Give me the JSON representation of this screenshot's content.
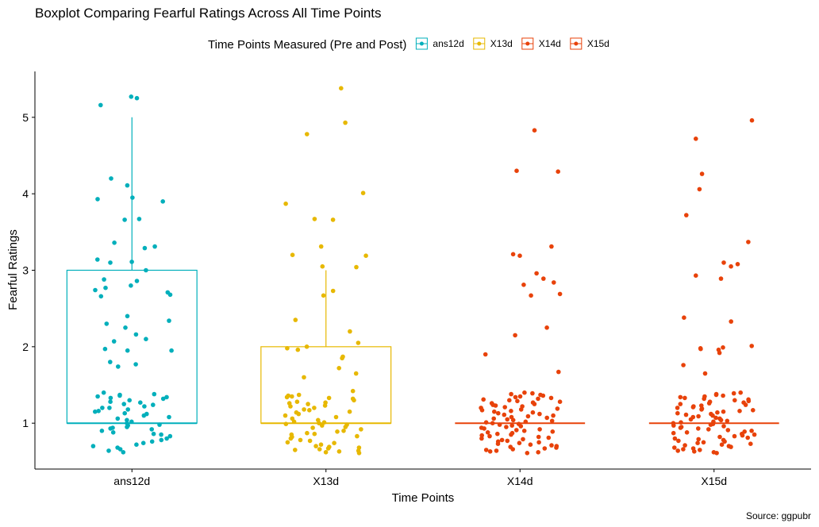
{
  "chart_data": {
    "type": "boxplot",
    "title": "Boxplot Comparing Fearful Ratings Across All Time Points",
    "xlabel": "Time Points",
    "ylabel": "Fearful Ratings",
    "caption": "Source: ggpubr",
    "legend": {
      "title": "Time Points Measured (Pre and Post)",
      "position": "top",
      "entries": [
        "ans12d",
        "X13d",
        "X14d",
        "X15d"
      ]
    },
    "ylim": [
      0.4,
      5.6
    ],
    "yticks": [
      1,
      2,
      3,
      4,
      5
    ],
    "categories": [
      "ans12d",
      "X13d",
      "X14d",
      "X15d"
    ],
    "series": [
      {
        "name": "ans12d",
        "color": "#00AFBB",
        "box": {
          "q1": 1,
          "median": 1,
          "q3": 3,
          "whisker_low": 1,
          "whisker_high": 5
        },
        "points": [
          5.27,
          5.25,
          5.16,
          4.2,
          4.11,
          3.95,
          3.93,
          3.9,
          3.67,
          3.66,
          3.36,
          3.31,
          3.29,
          3.14,
          3.11,
          3.1,
          3.0,
          2.88,
          2.86,
          2.8,
          2.77,
          2.74,
          2.71,
          2.68,
          2.66,
          2.4,
          2.34,
          2.3,
          2.25,
          2.16,
          2.1,
          2.07,
          1.97,
          1.95,
          1.95,
          1.8,
          1.77,
          1.74,
          1.4,
          1.38,
          1.37,
          1.36,
          1.35,
          1.34,
          1.33,
          1.32,
          1.3,
          1.28,
          1.27,
          1.25,
          1.24,
          1.22,
          1.2,
          1.2,
          1.18,
          1.16,
          1.15,
          1.13,
          1.12,
          1.1,
          1.08,
          1.06,
          1.04,
          1.02,
          1.0,
          0.98,
          0.97,
          0.95,
          0.94,
          0.93,
          0.92,
          0.9,
          0.88,
          0.86,
          0.85,
          0.83,
          0.8,
          0.78,
          0.76,
          0.74,
          0.72,
          0.7,
          0.68,
          0.66,
          0.64,
          0.62
        ]
      },
      {
        "name": "X13d",
        "color": "#E7B800",
        "box": {
          "q1": 1,
          "median": 1,
          "q3": 2,
          "whisker_low": 1,
          "whisker_high": 3
        },
        "points": [
          5.38,
          4.93,
          4.78,
          4.01,
          3.87,
          3.67,
          3.66,
          3.31,
          3.2,
          3.19,
          3.05,
          3.04,
          2.73,
          2.67,
          2.35,
          2.2,
          2.05,
          2.0,
          1.98,
          1.96,
          1.87,
          1.85,
          1.72,
          1.65,
          1.6,
          1.42,
          1.37,
          1.36,
          1.35,
          1.34,
          1.33,
          1.32,
          1.3,
          1.28,
          1.27,
          1.26,
          1.25,
          1.23,
          1.22,
          1.2,
          1.18,
          1.17,
          1.15,
          1.14,
          1.12,
          1.1,
          1.08,
          1.06,
          1.04,
          1.02,
          1.01,
          1.0,
          0.99,
          0.98,
          0.97,
          0.95,
          0.94,
          0.92,
          0.9,
          0.89,
          0.87,
          0.86,
          0.85,
          0.83,
          0.82,
          0.8,
          0.78,
          0.77,
          0.75,
          0.74,
          0.72,
          0.7,
          0.69,
          0.68,
          0.67,
          0.66,
          0.65,
          0.64,
          0.63,
          0.62,
          0.61
        ]
      },
      {
        "name": "X14d",
        "color": "#E8420A",
        "box": {
          "q1": 1,
          "median": 1,
          "q3": 1,
          "whisker_low": 1,
          "whisker_high": 1
        },
        "points": [
          4.83,
          4.3,
          4.29,
          3.31,
          3.21,
          3.19,
          2.96,
          2.89,
          2.84,
          2.81,
          2.69,
          2.67,
          2.25,
          2.15,
          1.9,
          1.67,
          1.4,
          1.39,
          1.38,
          1.37,
          1.36,
          1.35,
          1.34,
          1.33,
          1.32,
          1.31,
          1.3,
          1.29,
          1.28,
          1.27,
          1.26,
          1.25,
          1.24,
          1.23,
          1.22,
          1.21,
          1.2,
          1.19,
          1.18,
          1.17,
          1.16,
          1.15,
          1.14,
          1.13,
          1.12,
          1.11,
          1.1,
          1.09,
          1.08,
          1.07,
          1.06,
          1.05,
          1.04,
          1.03,
          1.02,
          1.01,
          1.0,
          0.99,
          0.98,
          0.97,
          0.96,
          0.95,
          0.94,
          0.93,
          0.92,
          0.91,
          0.9,
          0.89,
          0.88,
          0.87,
          0.86,
          0.85,
          0.84,
          0.83,
          0.82,
          0.81,
          0.8,
          0.79,
          0.78,
          0.77,
          0.76,
          0.75,
          0.74,
          0.73,
          0.72,
          0.71,
          0.7,
          0.69,
          0.68,
          0.67,
          0.66,
          0.65,
          0.64,
          0.63,
          0.62,
          0.61
        ]
      },
      {
        "name": "X15d",
        "color": "#E8420A",
        "box": {
          "q1": 1,
          "median": 1,
          "q3": 1,
          "whisker_low": 1,
          "whisker_high": 1
        },
        "points": [
          4.96,
          4.72,
          4.26,
          4.06,
          3.72,
          3.37,
          3.1,
          3.08,
          3.05,
          2.93,
          2.89,
          2.38,
          2.33,
          2.01,
          1.99,
          1.98,
          1.97,
          1.96,
          1.92,
          1.76,
          1.65,
          1.4,
          1.39,
          1.38,
          1.37,
          1.36,
          1.35,
          1.34,
          1.33,
          1.32,
          1.31,
          1.3,
          1.29,
          1.28,
          1.27,
          1.26,
          1.25,
          1.24,
          1.23,
          1.22,
          1.21,
          1.2,
          1.19,
          1.18,
          1.17,
          1.16,
          1.15,
          1.14,
          1.13,
          1.12,
          1.11,
          1.1,
          1.09,
          1.08,
          1.07,
          1.06,
          1.05,
          1.04,
          1.03,
          1.02,
          1.01,
          1.0,
          0.99,
          0.98,
          0.97,
          0.96,
          0.95,
          0.94,
          0.93,
          0.92,
          0.91,
          0.9,
          0.89,
          0.88,
          0.87,
          0.86,
          0.85,
          0.84,
          0.83,
          0.82,
          0.81,
          0.8,
          0.79,
          0.78,
          0.77,
          0.76,
          0.75,
          0.74,
          0.73,
          0.72,
          0.71,
          0.7,
          0.69,
          0.68,
          0.67,
          0.66,
          0.65,
          0.64,
          0.63,
          0.62,
          0.61
        ]
      }
    ]
  }
}
